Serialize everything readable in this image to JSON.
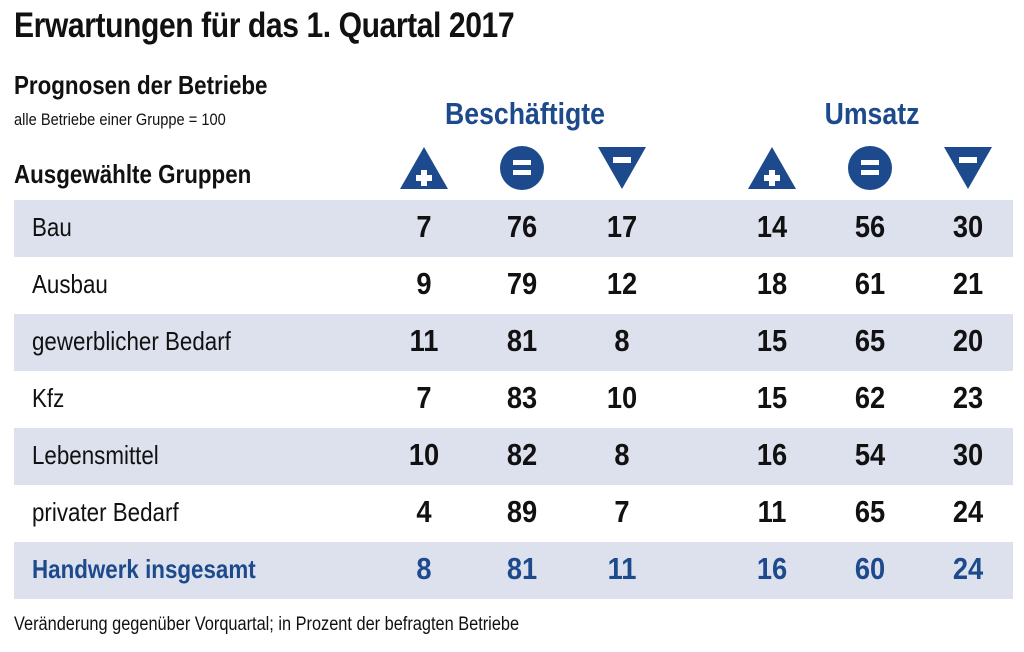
{
  "chart_data": {
    "type": "table",
    "title": "Erwartungen für das 1. Quartal 2017",
    "subtitle": "Prognosen der Betriebe",
    "note": "alle Betriebe einer Gruppe = 100",
    "row_header": "Ausgewählte Gruppen",
    "column_groups": [
      {
        "name": "Beschäftigte",
        "columns": [
          "+",
          "=",
          "−"
        ]
      },
      {
        "name": "Umsatz",
        "columns": [
          "+",
          "=",
          "−"
        ]
      }
    ],
    "column_icons": [
      "triangle-up-plus-icon",
      "circle-equals-icon",
      "triangle-down-minus-icon"
    ],
    "rows": [
      {
        "label": "Bau",
        "beschaeftigte": [
          7,
          76,
          17
        ],
        "umsatz": [
          14,
          56,
          30
        ]
      },
      {
        "label": "Ausbau",
        "beschaeftigte": [
          9,
          79,
          12
        ],
        "umsatz": [
          18,
          61,
          21
        ]
      },
      {
        "label": "gewerblicher Bedarf",
        "beschaeftigte": [
          11,
          81,
          8
        ],
        "umsatz": [
          15,
          65,
          20
        ]
      },
      {
        "label": "Kfz",
        "beschaeftigte": [
          7,
          83,
          10
        ],
        "umsatz": [
          15,
          62,
          23
        ]
      },
      {
        "label": "Lebensmittel",
        "beschaeftigte": [
          10,
          82,
          8
        ],
        "umsatz": [
          16,
          54,
          30
        ]
      },
      {
        "label": "privater Bedarf",
        "beschaeftigte": [
          4,
          89,
          7
        ],
        "umsatz": [
          11,
          65,
          24
        ]
      },
      {
        "label": "Handwerk insgesamt",
        "beschaeftigte": [
          8,
          81,
          11
        ],
        "umsatz": [
          16,
          60,
          24
        ],
        "total": true
      }
    ],
    "footnote": "Veränderung gegenüber Vorquartal; in Prozent der befragten Betriebe"
  },
  "colors": {
    "accent": "#1d4a8c",
    "row_shade": "#dde1ee",
    "text": "#111111"
  }
}
